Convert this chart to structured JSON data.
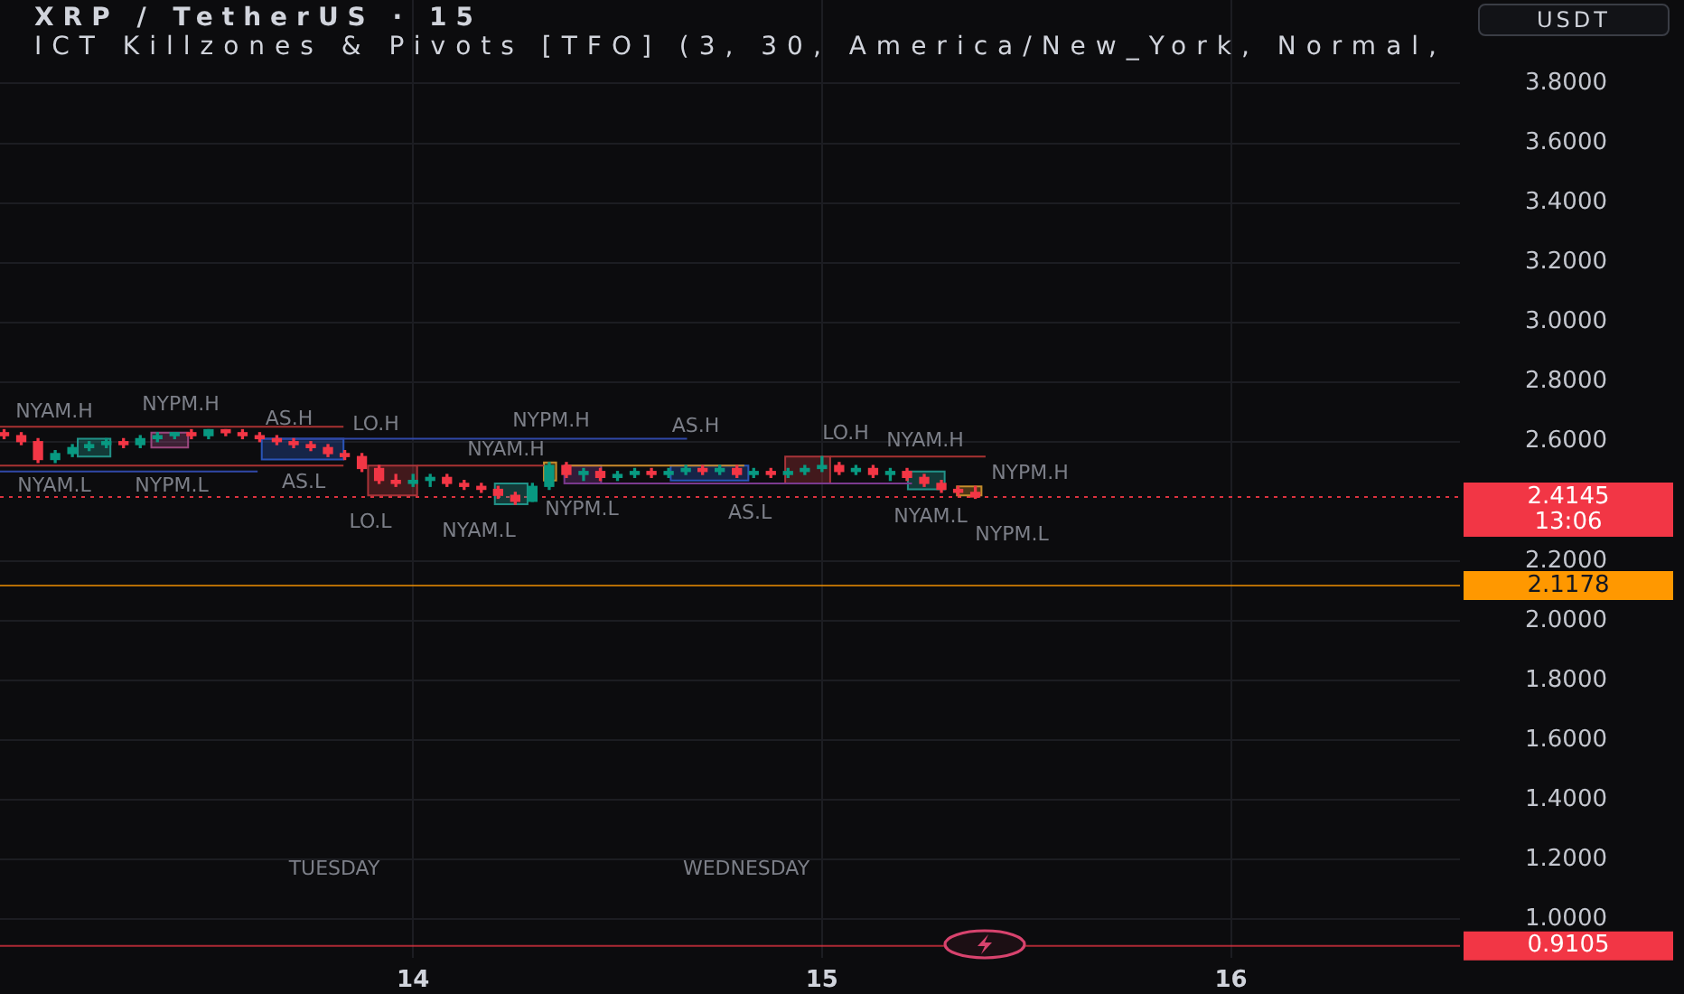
{
  "chart_data": {
    "type": "candlestick",
    "title": "XRP / TetherUS · 15",
    "subtitle": "ICT Killzones & Pivots [TFO] (3, 30, America/New_York, Normal,",
    "ylabel": "USDT",
    "x": [
      13,
      13.042,
      13.083,
      13.125,
      13.167,
      13.208,
      13.25,
      13.292,
      13.333,
      13.375,
      13.417,
      13.458,
      13.5,
      13.542,
      13.583,
      13.625,
      13.667,
      13.708,
      13.75,
      13.792,
      13.833,
      13.875,
      13.917,
      13.958,
      14,
      14.042,
      14.083,
      14.125,
      14.167,
      14.208,
      14.25,
      14.292,
      14.333,
      14.375,
      14.417,
      14.458,
      14.5,
      14.542,
      14.583,
      14.625,
      14.667,
      14.708,
      14.75,
      14.792,
      14.833,
      14.875,
      14.917,
      14.958,
      15,
      15.042,
      15.083,
      15.125,
      15.167,
      15.208,
      15.25,
      15.292,
      15.333,
      15.375
    ],
    "ohlc": [
      [
        2.63,
        2.64,
        2.61,
        2.62
      ],
      [
        2.62,
        2.63,
        2.59,
        2.6
      ],
      [
        2.6,
        2.61,
        2.53,
        2.54
      ],
      [
        2.54,
        2.57,
        2.53,
        2.56
      ],
      [
        2.56,
        2.59,
        2.55,
        2.58
      ],
      [
        2.58,
        2.6,
        2.57,
        2.59
      ],
      [
        2.59,
        2.61,
        2.58,
        2.6
      ],
      [
        2.6,
        2.61,
        2.58,
        2.59
      ],
      [
        2.59,
        2.62,
        2.58,
        2.61
      ],
      [
        2.61,
        2.63,
        2.6,
        2.62
      ],
      [
        2.62,
        2.63,
        2.61,
        2.63
      ],
      [
        2.63,
        2.64,
        2.61,
        2.62
      ],
      [
        2.62,
        2.64,
        2.61,
        2.64
      ],
      [
        2.64,
        2.64,
        2.62,
        2.63
      ],
      [
        2.63,
        2.64,
        2.61,
        2.62
      ],
      [
        2.62,
        2.63,
        2.6,
        2.61
      ],
      [
        2.61,
        2.62,
        2.59,
        2.6
      ],
      [
        2.6,
        2.61,
        2.58,
        2.59
      ],
      [
        2.59,
        2.6,
        2.57,
        2.58
      ],
      [
        2.58,
        2.59,
        2.55,
        2.56
      ],
      [
        2.56,
        2.57,
        2.54,
        2.55
      ],
      [
        2.55,
        2.56,
        2.5,
        2.51
      ],
      [
        2.51,
        2.52,
        2.46,
        2.47
      ],
      [
        2.47,
        2.49,
        2.45,
        2.46
      ],
      [
        2.46,
        2.49,
        2.45,
        2.47
      ],
      [
        2.47,
        2.49,
        2.45,
        2.48
      ],
      [
        2.48,
        2.49,
        2.45,
        2.46
      ],
      [
        2.46,
        2.47,
        2.44,
        2.45
      ],
      [
        2.45,
        2.46,
        2.43,
        2.44
      ],
      [
        2.44,
        2.45,
        2.41,
        2.42
      ],
      [
        2.42,
        2.43,
        2.39,
        2.4
      ],
      [
        2.4,
        2.46,
        2.4,
        2.45
      ],
      [
        2.45,
        2.53,
        2.44,
        2.52
      ],
      [
        2.52,
        2.53,
        2.48,
        2.49
      ],
      [
        2.49,
        2.51,
        2.47,
        2.5
      ],
      [
        2.5,
        2.51,
        2.47,
        2.48
      ],
      [
        2.48,
        2.5,
        2.47,
        2.49
      ],
      [
        2.49,
        2.51,
        2.48,
        2.5
      ],
      [
        2.5,
        2.51,
        2.48,
        2.49
      ],
      [
        2.49,
        2.51,
        2.48,
        2.5
      ],
      [
        2.5,
        2.52,
        2.49,
        2.51
      ],
      [
        2.51,
        2.52,
        2.49,
        2.5
      ],
      [
        2.5,
        2.52,
        2.49,
        2.51
      ],
      [
        2.51,
        2.52,
        2.48,
        2.49
      ],
      [
        2.49,
        2.51,
        2.48,
        2.5
      ],
      [
        2.5,
        2.51,
        2.48,
        2.49
      ],
      [
        2.49,
        2.51,
        2.48,
        2.5
      ],
      [
        2.5,
        2.52,
        2.49,
        2.51
      ],
      [
        2.51,
        2.55,
        2.5,
        2.52
      ],
      [
        2.52,
        2.53,
        2.49,
        2.5
      ],
      [
        2.5,
        2.52,
        2.49,
        2.51
      ],
      [
        2.51,
        2.52,
        2.48,
        2.49
      ],
      [
        2.49,
        2.51,
        2.47,
        2.5
      ],
      [
        2.5,
        2.51,
        2.47,
        2.48
      ],
      [
        2.48,
        2.49,
        2.45,
        2.46
      ],
      [
        2.46,
        2.47,
        2.43,
        2.44
      ],
      [
        2.44,
        2.45,
        2.42,
        2.43
      ],
      [
        2.43,
        2.45,
        2.41,
        2.4145
      ]
    ],
    "colors": [
      "#f23645",
      "#f23645",
      "#f23645",
      "#089981",
      "#089981",
      "#089981",
      "#089981",
      "#f23645",
      "#089981",
      "#089981",
      "#089981",
      "#f23645",
      "#089981",
      "#f23645",
      "#f23645",
      "#f23645",
      "#f23645",
      "#f23645",
      "#f23645",
      "#f23645",
      "#f23645",
      "#f23645",
      "#f23645",
      "#f23645",
      "#089981",
      "#089981",
      "#f23645",
      "#f23645",
      "#f23645",
      "#f23645",
      "#f23645",
      "#089981",
      "#089981",
      "#f23645",
      "#089981",
      "#f23645",
      "#089981",
      "#089981",
      "#f23645",
      "#089981",
      "#089981",
      "#f23645",
      "#089981",
      "#f23645",
      "#089981",
      "#f23645",
      "#089981",
      "#089981",
      "#089981",
      "#f23645",
      "#089981",
      "#f23645",
      "#089981",
      "#f23645",
      "#f23645",
      "#f23645",
      "#f23645",
      "#f23645"
    ],
    "series": [
      {
        "type": "line",
        "color": "#a83232",
        "x": [
          12.99,
          13.83
        ],
        "values": [
          2.65,
          2.65
        ]
      },
      {
        "type": "line",
        "color": "#a83232",
        "x": [
          12.99,
          13.83
        ],
        "values": [
          2.52,
          2.52
        ]
      },
      {
        "type": "line",
        "color": "#3048a8",
        "x": [
          12.99,
          13.62
        ],
        "values": [
          2.5,
          2.5
        ]
      },
      {
        "type": "line",
        "color": "#3048a8",
        "x": [
          13.63,
          14.67
        ],
        "values": [
          2.61,
          2.61
        ]
      },
      {
        "type": "line",
        "color": "#a83232",
        "x": [
          14.01,
          14.32
        ],
        "values": [
          2.52,
          2.52
        ]
      },
      {
        "type": "line",
        "color": "#c98a2b",
        "x": [
          14.37,
          14.81
        ],
        "values": [
          2.52,
          2.52
        ]
      },
      {
        "type": "line",
        "color": "#a83232",
        "x": [
          15.02,
          15.4
        ],
        "values": [
          2.55,
          2.55
        ]
      },
      {
        "type": "line",
        "color": "#7b3a8f",
        "x": [
          14.46,
          15.22
        ],
        "values": [
          2.46,
          2.46
        ]
      },
      {
        "type": "area",
        "color": "#26a69a",
        "x": [
          13.18,
          13.18,
          13.26,
          13.26,
          13.18
        ],
        "values": [
          2.55,
          2.61,
          2.61,
          2.55,
          2.55
        ]
      },
      {
        "type": "area",
        "color": "#b0508f",
        "x": [
          13.36,
          13.36,
          13.45,
          13.45,
          13.36
        ],
        "values": [
          2.58,
          2.63,
          2.63,
          2.58,
          2.58
        ]
      },
      {
        "type": "area",
        "color": "#2f5fd0",
        "x": [
          13.63,
          13.63,
          13.83,
          13.83,
          13.63
        ],
        "values": [
          2.54,
          2.61,
          2.61,
          2.54,
          2.54
        ]
      },
      {
        "type": "area",
        "color": "#c0393f",
        "x": [
          13.89,
          13.89,
          14.01,
          14.01,
          13.89
        ],
        "values": [
          2.42,
          2.52,
          2.52,
          2.42,
          2.42
        ]
      },
      {
        "type": "area",
        "color": "#26a69a",
        "x": [
          14.2,
          14.2,
          14.28,
          14.28,
          14.2
        ],
        "values": [
          2.39,
          2.46,
          2.46,
          2.39,
          2.39
        ]
      },
      {
        "type": "area",
        "color": "#e0a030",
        "x": [
          14.32,
          14.32,
          14.35,
          14.35,
          14.32
        ],
        "values": [
          2.47,
          2.53,
          2.53,
          2.47,
          2.47
        ]
      },
      {
        "type": "area",
        "color": "#8a3fa0",
        "x": [
          14.37,
          14.37,
          14.46,
          14.46,
          14.37
        ],
        "values": [
          2.46,
          2.52,
          2.52,
          2.46,
          2.46
        ]
      },
      {
        "type": "area",
        "color": "#2f5fd0",
        "x": [
          14.63,
          14.63,
          14.82,
          14.82,
          14.63
        ],
        "values": [
          2.47,
          2.52,
          2.52,
          2.47,
          2.47
        ]
      },
      {
        "type": "area",
        "color": "#c0393f",
        "x": [
          14.91,
          14.91,
          15.02,
          15.02,
          14.91
        ],
        "values": [
          2.46,
          2.55,
          2.55,
          2.46,
          2.46
        ]
      },
      {
        "type": "area",
        "color": "#26a69a",
        "x": [
          15.21,
          15.21,
          15.3,
          15.3,
          15.21
        ],
        "values": [
          2.44,
          2.5,
          2.5,
          2.44,
          2.44
        ]
      },
      {
        "type": "area",
        "color": "#e0a030",
        "x": [
          15.33,
          15.33,
          15.39,
          15.39,
          15.33
        ],
        "values": [
          2.42,
          2.45,
          2.45,
          2.42,
          2.42
        ]
      }
    ],
    "xlim": [
      12.99,
      16.56
    ],
    "xticks": [
      14,
      15,
      16
    ],
    "ylim": [
      0.87,
      4.08
    ],
    "yticks": [
      {
        "value": 3.8,
        "label": "3.8000"
      },
      {
        "value": 3.6,
        "label": "3.6000"
      },
      {
        "value": 3.4,
        "label": "3.4000"
      },
      {
        "value": 3.2,
        "label": "3.2000"
      },
      {
        "value": 3,
        "label": "3.0000"
      },
      {
        "value": 2.8,
        "label": "2.8000"
      },
      {
        "value": 2.6,
        "label": "2.6000"
      },
      {
        "value": 2.2,
        "label": "2.2000"
      },
      {
        "value": 2,
        "label": "2.0000"
      },
      {
        "value": 1.8,
        "label": "1.8000"
      },
      {
        "value": 1.6,
        "label": "1.6000"
      },
      {
        "value": 1.4,
        "label": "1.4000"
      },
      {
        "value": 1.2,
        "label": "1.2000"
      },
      {
        "value": 1,
        "label": "1.0000"
      }
    ],
    "ref_lines": [
      {
        "axis": "y",
        "value": 2.4145,
        "label": "2.4145\n13:06",
        "color": "#f23645",
        "line_style": "dotted"
      },
      {
        "axis": "y",
        "value": 2.1178,
        "label": "2.1178",
        "color": "#ff9800",
        "line_style": "solid"
      },
      {
        "axis": "y",
        "value": 0.9105,
        "label": "0.9105",
        "color": "#f23645",
        "line_style": "solid"
      }
    ],
    "annotations": [
      "NYAM.H",
      "NYPM.H",
      "AS.H",
      "NYAM.L",
      "NYPM.L",
      "AS.L",
      "LO.H",
      "LO.L",
      "NYAM.L",
      "NYAM.H",
      "NYPM.H",
      "AS.H",
      "LO.H",
      "NYAM.H",
      "NYPM.H",
      "NYPM.L",
      "AS.L",
      "NYAM.L",
      "NYPM.L",
      "TUESDAY",
      "WEDNESDAY"
    ],
    "grid": true,
    "marker": "none"
  }
}
